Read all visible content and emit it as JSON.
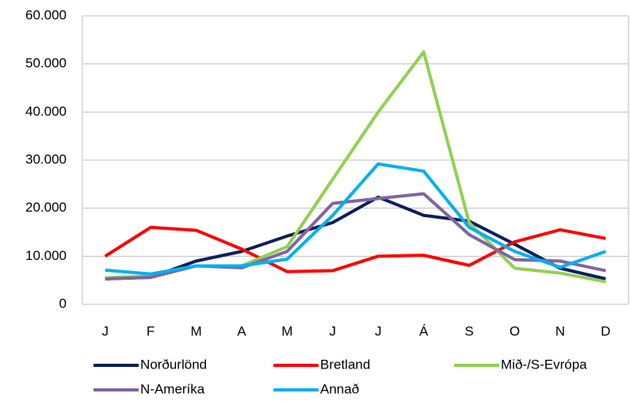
{
  "chart_data": {
    "type": "line",
    "categories": [
      "J",
      "F",
      "M",
      "A",
      "M",
      "J",
      "J",
      "Á",
      "S",
      "O",
      "N",
      "D"
    ],
    "series": [
      {
        "name": "Norðurlönd",
        "color": "#0d1f5c",
        "values": [
          5300,
          5600,
          9000,
          11000,
          14200,
          17000,
          22300,
          18500,
          17300,
          12500,
          7500,
          5300
        ]
      },
      {
        "name": "Bretland",
        "color": "#ff0000",
        "values": [
          10000,
          16000,
          15400,
          11500,
          6800,
          7000,
          10000,
          10200,
          8100,
          13000,
          15500,
          13700
        ]
      },
      {
        "name": "Mið-/S-Evrópa",
        "color": "#92d050",
        "values": [
          5500,
          5900,
          8000,
          8000,
          12000,
          26000,
          40000,
          52500,
          17000,
          7500,
          6500,
          4700
        ]
      },
      {
        "name": "N-Ameríka",
        "color": "#8064a2",
        "values": [
          5300,
          5600,
          8000,
          7600,
          11000,
          21000,
          22000,
          23000,
          14500,
          9300,
          9000,
          7000
        ]
      },
      {
        "name": "Annað",
        "color": "#00b0f0",
        "values": [
          7100,
          6300,
          8000,
          8000,
          9400,
          18500,
          29200,
          27700,
          16000,
          11000,
          7700,
          11000
        ]
      }
    ],
    "ylim": [
      0,
      60000
    ],
    "yticks": [
      0,
      {
        "value": 10000,
        "label": "10.000"
      },
      {
        "value": 20000,
        "label": "20.000"
      },
      {
        "value": 30000,
        "label": "30.000"
      },
      {
        "value": 40000,
        "label": "40.000"
      },
      {
        "value": 50000,
        "label": "50.000"
      },
      {
        "value": 60000,
        "label": "60.000"
      }
    ],
    "grid": true
  }
}
